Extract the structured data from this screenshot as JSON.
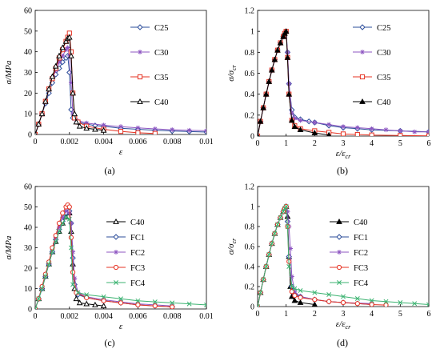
{
  "chart_data": [
    {
      "type": "line",
      "panel_label": "(a)",
      "xlabel": "ε",
      "ylabel": "σ/MPa",
      "xlim": [
        0,
        0.01
      ],
      "ylim": [
        0,
        60
      ],
      "xticks": [
        "0",
        "0.002",
        "0.004",
        "0.006",
        "0.008",
        "0.01"
      ],
      "yticks": [
        "0",
        "10",
        "20",
        "30",
        "40",
        "50",
        "60"
      ],
      "xtick_values": [
        0,
        0.002,
        0.004,
        0.006,
        0.008,
        0.01
      ],
      "ytick_values": [
        0,
        10,
        20,
        30,
        40,
        50,
        60
      ],
      "legend_position": "right",
      "series": [
        {
          "name": "C25",
          "color": "#2b4c9a",
          "marker": "diamond-open",
          "x": [
            0,
            0.0002,
            0.0004,
            0.0006,
            0.0008,
            0.001,
            0.0012,
            0.0014,
            0.0016,
            0.0018,
            0.0019,
            0.002,
            0.0021,
            0.0022,
            0.0025,
            0.003,
            0.0035,
            0.004,
            0.005,
            0.006,
            0.007,
            0.008,
            0.009,
            0.01
          ],
          "y": [
            0,
            5,
            10,
            15,
            20,
            25,
            29,
            32,
            35,
            37,
            38,
            30,
            12,
            8,
            6,
            5,
            4.3,
            4,
            3,
            2.5,
            2,
            1.7,
            1.4,
            1.2
          ]
        },
        {
          "name": "C30",
          "color": "#8e56c2",
          "marker": "star",
          "x": [
            0,
            0.0002,
            0.0004,
            0.0006,
            0.0008,
            0.001,
            0.0012,
            0.0014,
            0.0016,
            0.0018,
            0.0019,
            0.002,
            0.0021,
            0.0022,
            0.0024,
            0.003,
            0.004,
            0.005,
            0.006,
            0.007,
            0.008,
            0.009,
            0.01
          ],
          "y": [
            0,
            5,
            10,
            16,
            22,
            27,
            31,
            35,
            38,
            41,
            42,
            38,
            25,
            10,
            7,
            5.5,
            4.5,
            3.8,
            3.2,
            2.7,
            2.3,
            2,
            1.8
          ]
        },
        {
          "name": "C35",
          "color": "#e53323",
          "marker": "square-open",
          "x": [
            0,
            0.0002,
            0.0004,
            0.0006,
            0.0008,
            0.001,
            0.0012,
            0.0014,
            0.0016,
            0.0018,
            0.0019,
            0.002,
            0.0021,
            0.0022,
            0.0023,
            0.0025,
            0.003,
            0.004,
            0.005,
            0.006,
            0.007
          ],
          "y": [
            0,
            5,
            10,
            16,
            22,
            27,
            32,
            37,
            41,
            45,
            47,
            49,
            40,
            20,
            8,
            6,
            4,
            2.5,
            1.5,
            0.8,
            0.5
          ]
        },
        {
          "name": "C40",
          "color": "#000000",
          "marker": "triangle-open",
          "x": [
            0,
            0.0002,
            0.0004,
            0.0006,
            0.0008,
            0.001,
            0.0012,
            0.0014,
            0.0016,
            0.0018,
            0.0019,
            0.002,
            0.0021,
            0.0022,
            0.0023,
            0.0024,
            0.0026,
            0.003,
            0.0035,
            0.004
          ],
          "y": [
            0,
            5,
            10,
            16,
            22,
            28,
            33,
            38,
            42,
            45,
            46.5,
            47,
            38,
            20,
            10,
            6,
            4,
            3,
            2.5,
            2
          ]
        }
      ]
    },
    {
      "type": "line",
      "panel_label": "(b)",
      "xlabel": "ε/ε",
      "xlabel_sub": "cr",
      "ylabel": "σ/σ",
      "ylabel_sub": "cr",
      "xlim": [
        0,
        6
      ],
      "ylim": [
        0,
        1.2
      ],
      "xticks": [
        "0",
        "1",
        "2",
        "3",
        "4",
        "5",
        "6"
      ],
      "yticks": [
        "0",
        "0.2",
        "0.4",
        "0.6",
        "0.8",
        "1",
        "1.2"
      ],
      "xtick_values": [
        0,
        1,
        2,
        3,
        4,
        5,
        6
      ],
      "ytick_values": [
        0,
        0.2,
        0.4,
        0.6,
        0.8,
        1,
        1.2
      ],
      "legend_position": "right",
      "series": [
        {
          "name": "C25",
          "color": "#2b4c9a",
          "marker": "diamond-open",
          "x": [
            0,
            0.1,
            0.2,
            0.3,
            0.4,
            0.5,
            0.6,
            0.7,
            0.8,
            0.9,
            0.95,
            1,
            1.05,
            1.1,
            1.2,
            1.3,
            1.5,
            1.8,
            2,
            2.5,
            3,
            3.5,
            4,
            5,
            6
          ],
          "y": [
            0,
            0.14,
            0.27,
            0.4,
            0.52,
            0.63,
            0.73,
            0.82,
            0.89,
            0.95,
            0.98,
            1,
            0.8,
            0.5,
            0.25,
            0.18,
            0.16,
            0.14,
            0.13,
            0.1,
            0.08,
            0.07,
            0.06,
            0.05,
            0.04
          ]
        },
        {
          "name": "C30",
          "color": "#8e56c2",
          "marker": "star",
          "x": [
            0,
            0.1,
            0.2,
            0.3,
            0.4,
            0.5,
            0.6,
            0.7,
            0.8,
            0.9,
            0.95,
            1,
            1.05,
            1.1,
            1.2,
            1.3,
            1.5,
            2,
            2.5,
            3,
            3.5,
            4,
            4.5,
            5,
            5.5,
            6
          ],
          "y": [
            0,
            0.14,
            0.27,
            0.4,
            0.52,
            0.63,
            0.73,
            0.82,
            0.89,
            0.95,
            0.98,
            1,
            0.8,
            0.5,
            0.22,
            0.17,
            0.15,
            0.13,
            0.11,
            0.09,
            0.08,
            0.07,
            0.06,
            0.05,
            0.04,
            0.04
          ]
        },
        {
          "name": "C35",
          "color": "#e53323",
          "marker": "square-open",
          "x": [
            0,
            0.1,
            0.2,
            0.3,
            0.4,
            0.5,
            0.6,
            0.7,
            0.8,
            0.9,
            0.95,
            1,
            1.05,
            1.1,
            1.2,
            1.3,
            1.5,
            2,
            2.5,
            3,
            3.5,
            4,
            5,
            6
          ],
          "y": [
            0,
            0.14,
            0.27,
            0.4,
            0.52,
            0.63,
            0.73,
            0.82,
            0.89,
            0.95,
            0.98,
            1,
            0.75,
            0.4,
            0.15,
            0.1,
            0.07,
            0.05,
            0.035,
            0.02,
            0.015,
            0.01,
            0.005,
            0.002
          ]
        },
        {
          "name": "C40",
          "color": "#000000",
          "marker": "triangle-filled",
          "x": [
            0,
            0.1,
            0.2,
            0.3,
            0.4,
            0.5,
            0.6,
            0.7,
            0.8,
            0.9,
            0.95,
            1,
            1.05,
            1.1,
            1.2,
            1.3,
            1.5,
            2,
            2.5
          ],
          "y": [
            0,
            0.14,
            0.27,
            0.4,
            0.52,
            0.63,
            0.73,
            0.82,
            0.89,
            0.95,
            0.98,
            1,
            0.75,
            0.4,
            0.15,
            0.09,
            0.06,
            0.03,
            0.01
          ]
        }
      ]
    },
    {
      "type": "line",
      "panel_label": "(c)",
      "xlabel": "ε",
      "ylabel": "σ/MPa",
      "xlim": [
        0,
        0.01
      ],
      "ylim": [
        0,
        60
      ],
      "xticks": [
        "0",
        "0.002",
        "0.004",
        "0.006",
        "0.008",
        "0.01"
      ],
      "yticks": [
        "0",
        "10",
        "20",
        "30",
        "40",
        "50",
        "60"
      ],
      "xtick_values": [
        0,
        0.002,
        0.004,
        0.006,
        0.008,
        0.01
      ],
      "ytick_values": [
        0,
        10,
        20,
        30,
        40,
        50,
        60
      ],
      "legend_position": "right",
      "series": [
        {
          "name": "C40",
          "color": "#000000",
          "marker": "triangle-open",
          "x": [
            0,
            0.0002,
            0.0004,
            0.0006,
            0.0008,
            0.001,
            0.0012,
            0.0014,
            0.0016,
            0.0018,
            0.002,
            0.0021,
            0.0022,
            0.0023,
            0.0024,
            0.0026,
            0.003,
            0.0035,
            0.004
          ],
          "y": [
            0,
            5,
            10,
            16,
            22,
            28,
            33,
            38,
            42,
            45,
            47,
            38,
            22,
            10,
            5,
            3,
            2.5,
            2,
            1.5
          ]
        },
        {
          "name": "FC1",
          "color": "#2b4c9a",
          "marker": "diamond-open",
          "x": [
            0,
            0.0002,
            0.0004,
            0.0006,
            0.0008,
            0.001,
            0.0012,
            0.0014,
            0.0016,
            0.0018,
            0.002,
            0.0021,
            0.0022,
            0.0023,
            0.0025,
            0.003,
            0.004,
            0.005,
            0.006,
            0.007,
            0.008
          ],
          "y": [
            0,
            5,
            10,
            16,
            22,
            28,
            34,
            39,
            43,
            47,
            48,
            42,
            25,
            12,
            7,
            5.5,
            4,
            3,
            2,
            1.5,
            1
          ]
        },
        {
          "name": "FC2",
          "color": "#8e56c2",
          "marker": "star",
          "x": [
            0,
            0.0002,
            0.0004,
            0.0006,
            0.0008,
            0.001,
            0.0012,
            0.0014,
            0.0016,
            0.0018,
            0.002,
            0.0021,
            0.0022,
            0.0023,
            0.0025,
            0.003,
            0.004,
            0.005,
            0.006,
            0.007,
            0.008
          ],
          "y": [
            0,
            5,
            11,
            17,
            23,
            29,
            35,
            40,
            45,
            48,
            47,
            42,
            28,
            15,
            8,
            6,
            4.5,
            3.5,
            2.5,
            2,
            1.5
          ]
        },
        {
          "name": "FC3",
          "color": "#e53323",
          "marker": "circle-open",
          "x": [
            0,
            0.0002,
            0.0004,
            0.0006,
            0.0008,
            0.001,
            0.0012,
            0.0014,
            0.0016,
            0.0018,
            0.0019,
            0.002,
            0.0021,
            0.0022,
            0.0024,
            0.003,
            0.004,
            0.005,
            0.006,
            0.007,
            0.008
          ],
          "y": [
            0,
            5,
            11,
            17,
            23,
            30,
            36,
            42,
            47,
            50,
            51,
            50,
            35,
            18,
            8,
            5.5,
            4,
            3,
            2,
            1.5,
            1
          ]
        },
        {
          "name": "FC4",
          "color": "#3cb371",
          "marker": "x",
          "x": [
            0,
            0.0002,
            0.0004,
            0.0006,
            0.0008,
            0.001,
            0.0012,
            0.0014,
            0.0016,
            0.0018,
            0.002,
            0.0021,
            0.0022,
            0.0025,
            0.003,
            0.004,
            0.005,
            0.006,
            0.007,
            0.008,
            0.009,
            0.01
          ],
          "y": [
            0,
            5,
            10,
            16,
            22,
            28,
            33,
            38,
            42,
            45,
            44,
            30,
            12,
            8,
            7,
            6,
            5,
            4,
            3.5,
            3,
            2.5,
            2
          ]
        }
      ]
    },
    {
      "type": "line",
      "panel_label": "(d)",
      "xlabel": "ε/ε",
      "xlabel_sub": "cr",
      "ylabel": "σ/σ",
      "ylabel_sub": "cr",
      "xlim": [
        0,
        6
      ],
      "ylim": [
        0,
        1.2
      ],
      "xticks": [
        "0",
        "1",
        "2",
        "3",
        "4",
        "5",
        "6"
      ],
      "yticks": [
        "0",
        "0.2",
        "0.4",
        "0.6",
        "0.8",
        "1",
        "1.2"
      ],
      "xtick_values": [
        0,
        1,
        2,
        3,
        4,
        5,
        6
      ],
      "ytick_values": [
        0,
        0.2,
        0.4,
        0.6,
        0.8,
        1,
        1.2
      ],
      "legend_position": "right",
      "series": [
        {
          "name": "C40",
          "color": "#000000",
          "marker": "triangle-filled",
          "x": [
            0,
            0.1,
            0.2,
            0.3,
            0.4,
            0.5,
            0.6,
            0.7,
            0.8,
            0.9,
            0.95,
            1,
            1.05,
            1.1,
            1.15,
            1.2,
            1.3,
            1.5,
            2
          ],
          "y": [
            0,
            0.14,
            0.27,
            0.4,
            0.52,
            0.63,
            0.73,
            0.82,
            0.89,
            0.95,
            0.98,
            1,
            0.9,
            0.5,
            0.2,
            0.1,
            0.06,
            0.04,
            0.02
          ]
        },
        {
          "name": "FC1",
          "color": "#2b4c9a",
          "marker": "diamond-open",
          "x": [
            0,
            0.1,
            0.2,
            0.3,
            0.4,
            0.5,
            0.6,
            0.7,
            0.8,
            0.9,
            0.95,
            1,
            1.05,
            1.1,
            1.2,
            1.3,
            1.5,
            2,
            2.5,
            3,
            3.5,
            4
          ],
          "y": [
            0,
            0.14,
            0.27,
            0.4,
            0.52,
            0.63,
            0.73,
            0.82,
            0.89,
            0.95,
            0.98,
            1,
            0.85,
            0.5,
            0.2,
            0.12,
            0.1,
            0.07,
            0.05,
            0.04,
            0.03,
            0.02
          ]
        },
        {
          "name": "FC2",
          "color": "#8e56c2",
          "marker": "star",
          "x": [
            0,
            0.1,
            0.2,
            0.3,
            0.4,
            0.5,
            0.6,
            0.7,
            0.8,
            0.9,
            0.95,
            1,
            1.05,
            1.1,
            1.15,
            1.2,
            1.3,
            1.5,
            2,
            2.5,
            3,
            4
          ],
          "y": [
            0,
            0.14,
            0.27,
            0.4,
            0.52,
            0.63,
            0.73,
            0.82,
            0.89,
            0.95,
            0.98,
            1,
            0.95,
            0.8,
            0.58,
            0.3,
            0.15,
            0.1,
            0.07,
            0.05,
            0.04,
            0.03
          ]
        },
        {
          "name": "FC3",
          "color": "#e53323",
          "marker": "circle-open",
          "x": [
            0,
            0.1,
            0.2,
            0.3,
            0.4,
            0.5,
            0.6,
            0.7,
            0.8,
            0.9,
            0.95,
            1,
            1.05,
            1.1,
            1.2,
            1.3,
            1.5,
            2,
            2.5,
            3,
            3.5,
            4,
            4.5
          ],
          "y": [
            0,
            0.14,
            0.27,
            0.4,
            0.52,
            0.63,
            0.73,
            0.82,
            0.89,
            0.95,
            0.98,
            1,
            0.8,
            0.45,
            0.15,
            0.11,
            0.09,
            0.07,
            0.05,
            0.04,
            0.03,
            0.02,
            0.015
          ]
        },
        {
          "name": "FC4",
          "color": "#3cb371",
          "marker": "x",
          "x": [
            0,
            0.1,
            0.2,
            0.3,
            0.4,
            0.5,
            0.6,
            0.7,
            0.8,
            0.9,
            0.95,
            1,
            1.05,
            1.1,
            1.2,
            1.3,
            1.5,
            2,
            2.5,
            3,
            3.5,
            4,
            4.5,
            5,
            5.5,
            6
          ],
          "y": [
            0,
            0.14,
            0.27,
            0.4,
            0.52,
            0.63,
            0.73,
            0.82,
            0.89,
            0.95,
            0.98,
            1,
            0.8,
            0.4,
            0.2,
            0.18,
            0.16,
            0.14,
            0.12,
            0.1,
            0.08,
            0.06,
            0.05,
            0.04,
            0.03,
            0.02
          ]
        }
      ]
    }
  ]
}
